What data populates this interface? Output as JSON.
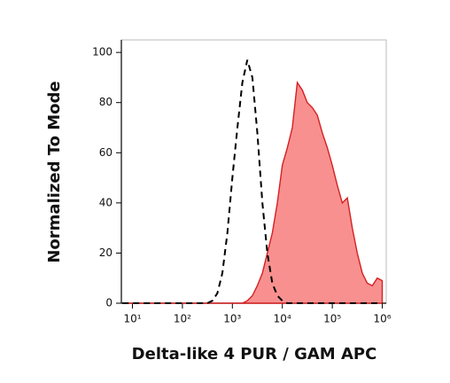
{
  "chart_data": {
    "type": "histogram-overlay",
    "x_label": "Delta-like 4 PUR / GAM APC",
    "y_label": "Normalized To Mode",
    "x_scale": "log",
    "xlim": [
      6,
      1200000
    ],
    "ylim": [
      0,
      105
    ],
    "xticks": [
      {
        "value": 10,
        "label": "10¹"
      },
      {
        "value": 100,
        "label": "10²"
      },
      {
        "value": 1000,
        "label": "10³"
      },
      {
        "value": 10000,
        "label": "10⁴"
      },
      {
        "value": 100000,
        "label": "10⁵"
      },
      {
        "value": 1000000,
        "label": "10⁶"
      }
    ],
    "yticks": [
      0,
      20,
      40,
      60,
      80,
      100
    ],
    "x": [
      6.31,
      7.94,
      10,
      12.6,
      15.8,
      20,
      25.1,
      31.6,
      39.8,
      50.1,
      63.1,
      79.4,
      100,
      126,
      158,
      200,
      251,
      316,
      398,
      501,
      631,
      794,
      1000,
      1259,
      1585,
      1995,
      2512,
      3162,
      3981,
      5012,
      6310,
      7943,
      10000,
      12589,
      15849,
      19953,
      25119,
      31623,
      39811,
      50119,
      63096,
      79433,
      100000,
      125893,
      158489,
      199526,
      251189,
      316228,
      398107,
      501187,
      630957,
      794328,
      1000000
    ],
    "series": [
      {
        "style": "filled",
        "color": "#d62020",
        "fill": "#f89090",
        "values": [
          0,
          0,
          0,
          0,
          0,
          0,
          0,
          0,
          0,
          0,
          0,
          0,
          0,
          0,
          0,
          0,
          0,
          0,
          0,
          0,
          0,
          0,
          0,
          0,
          0,
          1,
          3,
          7,
          12,
          20,
          28,
          40,
          55,
          62,
          70,
          88,
          85,
          80,
          78,
          75,
          68,
          62,
          55,
          47,
          40,
          42,
          30,
          20,
          12,
          8,
          7,
          10,
          9
        ]
      },
      {
        "style": "dashed",
        "color": "#000000",
        "values": [
          0,
          0,
          0,
          0,
          0,
          0,
          0,
          0,
          0,
          0,
          0,
          0,
          0,
          0,
          0,
          0,
          0,
          0,
          1,
          4,
          12,
          28,
          50,
          70,
          88,
          97,
          90,
          68,
          40,
          20,
          8,
          3,
          1,
          0,
          0,
          0,
          0,
          0,
          0,
          0,
          0,
          0,
          0,
          0,
          0,
          0,
          0,
          0,
          0,
          0,
          0,
          0,
          0
        ]
      }
    ]
  }
}
